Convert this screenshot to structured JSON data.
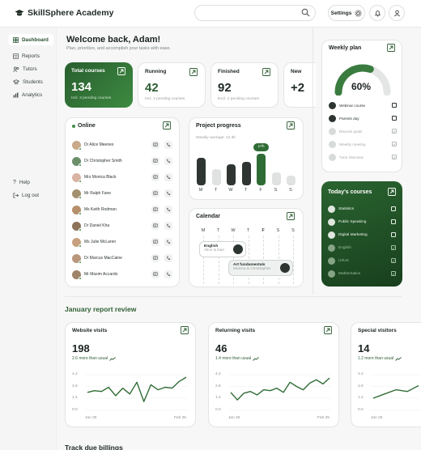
{
  "app": {
    "name": "SkillSphere Academy"
  },
  "header": {
    "search_placeholder": "",
    "settings_label": "Settings"
  },
  "sidebar": {
    "items": [
      {
        "label": "Dashboard",
        "icon": "grid-icon",
        "active": true
      },
      {
        "label": "Reports",
        "icon": "list-icon"
      },
      {
        "label": "Tutors",
        "icon": "users-icon"
      },
      {
        "label": "Students",
        "icon": "student-icon"
      },
      {
        "label": "Analytics",
        "icon": "chart-icon"
      }
    ],
    "help_label": "Help",
    "logout_label": "Log out"
  },
  "welcome": {
    "title": "Welcome back, Adam!",
    "subtitle": "Plan, prioritize, and accomplish your tasks with ease."
  },
  "kpis": [
    {
      "title": "Total courses",
      "value": "134",
      "note": "Incl. 3 pending courses"
    },
    {
      "title": "Running",
      "value": "42",
      "note": "Incl. 2 pending courses"
    },
    {
      "title": "Finished",
      "value": "92",
      "note": "Excl. 2 pending courses"
    },
    {
      "title": "New",
      "value": "+2",
      "note": ""
    }
  ],
  "online": {
    "title": "Online",
    "tutors": [
      "Dr Alice Meenes",
      "Dr Christopher Smith",
      "Mrs Monica Black",
      "Mr Ralph Fane",
      "Ms Keith Rodman",
      "Dr Daniel Kha",
      "Ms Julie McLaren",
      "Dr Marcus MacCaine",
      "Mr Maxim Accardo"
    ]
  },
  "progress": {
    "title": "Project progress",
    "subtitle": "Weekly average: 12.3h",
    "highlight_label": "17h",
    "days": [
      "M",
      "T",
      "W",
      "T",
      "F",
      "S",
      "S"
    ],
    "values": [
      0.78,
      0.46,
      0.58,
      0.66,
      0.88,
      0.36,
      0.28
    ],
    "active_day": 4
  },
  "calendar": {
    "title": "Calendar",
    "days": [
      "M",
      "T",
      "W",
      "T",
      "F",
      "S",
      "S"
    ],
    "active_day": 4,
    "events": [
      {
        "title": "English",
        "sub": "Alice & Dan"
      },
      {
        "title": "Art fundamentals",
        "sub": "Monica & Christopher"
      }
    ]
  },
  "weekly_plan": {
    "title": "Weekly plan",
    "percent": "60%",
    "progress": 0.6,
    "items": [
      {
        "label": "Webinar course",
        "done": false
      },
      {
        "label": "Parents day",
        "done": false
      },
      {
        "label": "Discuss goals",
        "done": true
      },
      {
        "label": "Weekly meeting",
        "done": true
      },
      {
        "label": "Tutor interview",
        "done": true
      }
    ]
  },
  "todays_courses": {
    "title": "Today's courses",
    "items": [
      {
        "label": "Statistics",
        "done": false
      },
      {
        "label": "Public Speaking",
        "done": false
      },
      {
        "label": "Digital Marketing",
        "done": false
      },
      {
        "label": "English",
        "done": true
      },
      {
        "label": "UI/UX",
        "done": true
      },
      {
        "label": "Mathematics",
        "done": true
      }
    ]
  },
  "report": {
    "title": "January report review",
    "cards": [
      {
        "title": "Website visits",
        "value": "198",
        "note": "2.6 more than usual",
        "start": "Jan 25",
        "end": "Feb 25",
        "yticks": [
          "4.2",
          "2.8",
          "1.4",
          "0.0"
        ],
        "series": [
          2.1,
          2.3,
          2.2,
          2.7,
          1.7,
          2.6,
          1.9,
          3.3,
          1.0,
          3.0,
          2.4,
          2.7,
          2.6,
          3.4,
          3.9
        ]
      },
      {
        "title": "Returning visits",
        "value": "46",
        "note": "1.4 more than usual",
        "start": "Jan 25",
        "end": "Feb 25",
        "yticks": [
          "4.2",
          "2.8",
          "1.4",
          "0.0"
        ],
        "series": [
          2.1,
          1.2,
          2.0,
          2.2,
          1.8,
          2.4,
          2.3,
          2.6,
          2.1,
          3.3,
          2.8,
          2.4,
          3.2,
          3.6,
          3.1,
          3.8
        ]
      },
      {
        "title": "Special visitors",
        "value": "14",
        "note": "1.2 more than usual",
        "start": "Jan 25",
        "end": "",
        "yticks": [
          "4.2",
          "2.8",
          "1.4",
          "0.0"
        ],
        "series": [
          1.4,
          1.9,
          2.4,
          2.2,
          2.9
        ]
      }
    ]
  },
  "footer": {
    "next_section": "Track due billings"
  }
}
